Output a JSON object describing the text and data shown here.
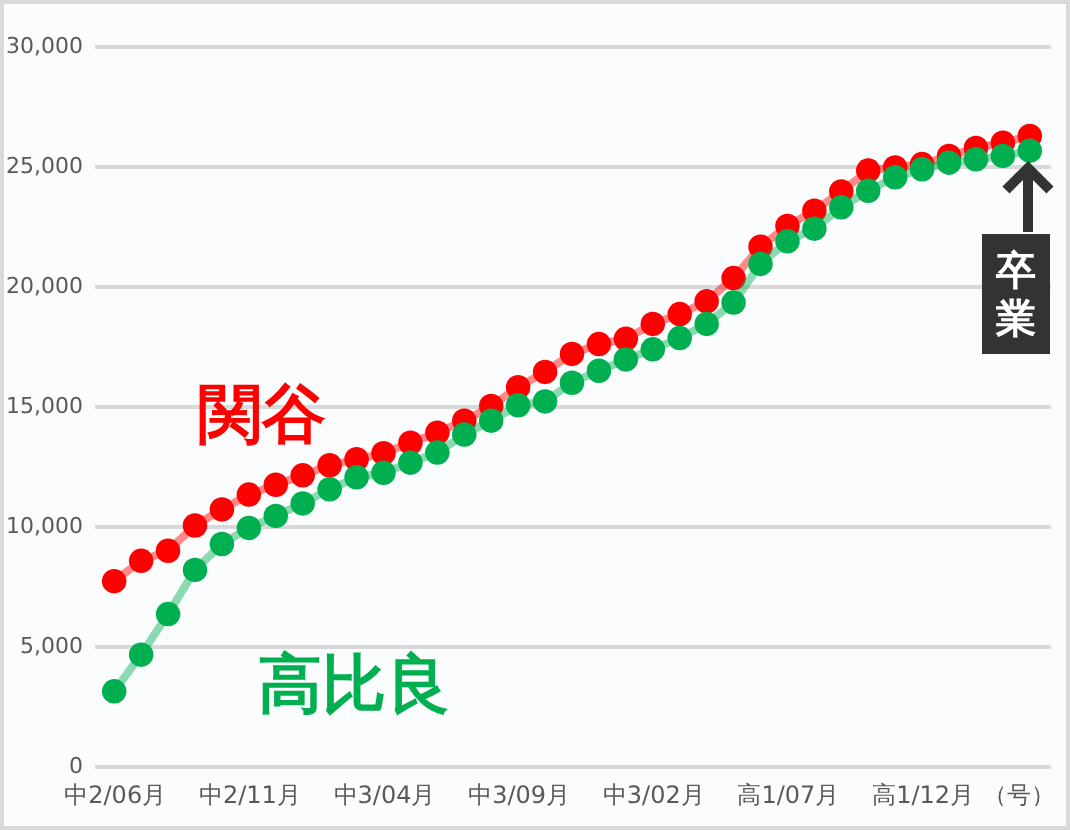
{
  "chart_data": {
    "type": "line",
    "categories": [
      "中2/06月",
      null,
      null,
      null,
      null,
      "中2/11月",
      null,
      null,
      null,
      null,
      "中3/04月",
      null,
      null,
      null,
      null,
      "中3/09月",
      null,
      null,
      null,
      null,
      "中3/02月",
      null,
      null,
      null,
      null,
      "高1/07月",
      null,
      null,
      null,
      null,
      "高1/12月",
      null,
      null,
      null,
      null
    ],
    "xlabel": "（号）",
    "series": [
      {
        "name": "関谷",
        "color": "#ff0000",
        "values": [
          7700,
          8550,
          8970,
          10020,
          10690,
          11310,
          11720,
          12110,
          12530,
          12780,
          13030,
          13470,
          13890,
          14390,
          15000,
          15780,
          16420,
          17170,
          17580,
          17800,
          18420,
          18830,
          19360,
          20330,
          21640,
          22500,
          23140,
          23940,
          24810,
          24940,
          25080,
          25420,
          25750,
          25970,
          26250
        ]
      },
      {
        "name": "高比良",
        "color": "#00b050",
        "values": [
          3110,
          4640,
          6330,
          8170,
          9250,
          9920,
          10420,
          10940,
          11530,
          12030,
          12220,
          12640,
          13060,
          13810,
          14390,
          15030,
          15190,
          15970,
          16470,
          16940,
          17360,
          17830,
          18420,
          19310,
          20920,
          21860,
          22390,
          23280,
          23970,
          24530,
          24860,
          25140,
          25280,
          25420,
          25640
        ]
      }
    ],
    "annotations": [
      "卒業"
    ],
    "ylim": [
      0,
      30000
    ],
    "yticks": [
      0,
      {
        "value": 5000,
        "label": "5,000"
      },
      {
        "value": 10000,
        "label": "10,000"
      },
      {
        "value": 15000,
        "label": "15,000"
      },
      {
        "value": 20000,
        "label": "20,000"
      },
      {
        "value": 25000,
        "label": "25,000"
      },
      {
        "value": 30000,
        "label": "30,000"
      }
    ],
    "grid": "y",
    "legend": false,
    "marker": "circle",
    "line_style": "solid"
  }
}
